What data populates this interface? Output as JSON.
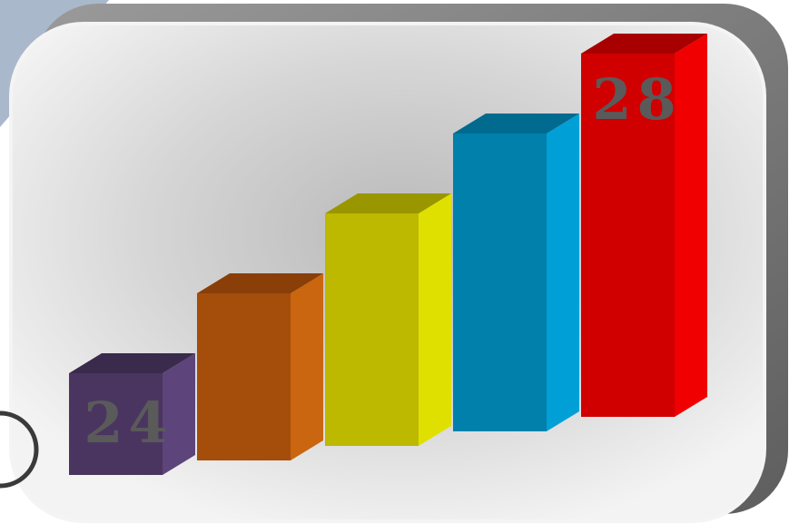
{
  "chart_data": {
    "type": "bar",
    "categories": [
      "",
      "",
      "",
      "",
      ""
    ],
    "values": [
      24,
      25,
      26,
      27,
      28
    ],
    "data_labels": [
      {
        "index": 0,
        "text": "24"
      },
      {
        "index": 4,
        "text": "28"
      }
    ],
    "bar_colors": [
      {
        "front": "#4a3560",
        "side": "#5d447a",
        "top": "#3a2a4c"
      },
      {
        "front": "#a54d0b",
        "side": "#c9660f",
        "top": "#8a3e08"
      },
      {
        "front": "#bdb800",
        "side": "#e0e000",
        "top": "#9a9600"
      },
      {
        "front": "#0080ab",
        "side": "#00a0d6",
        "top": "#006a8f"
      },
      {
        "front": "#d00000",
        "side": "#f00000",
        "top": "#a80000"
      }
    ],
    "label_color": "#5a5a5a",
    "title": "",
    "xlabel": "",
    "ylabel": "",
    "grid": false,
    "legend": "none"
  },
  "frame": {
    "panel_color": "#e9e9e9",
    "shadow_color": "#7a7a7a",
    "accent_color": "#aab8cc"
  }
}
